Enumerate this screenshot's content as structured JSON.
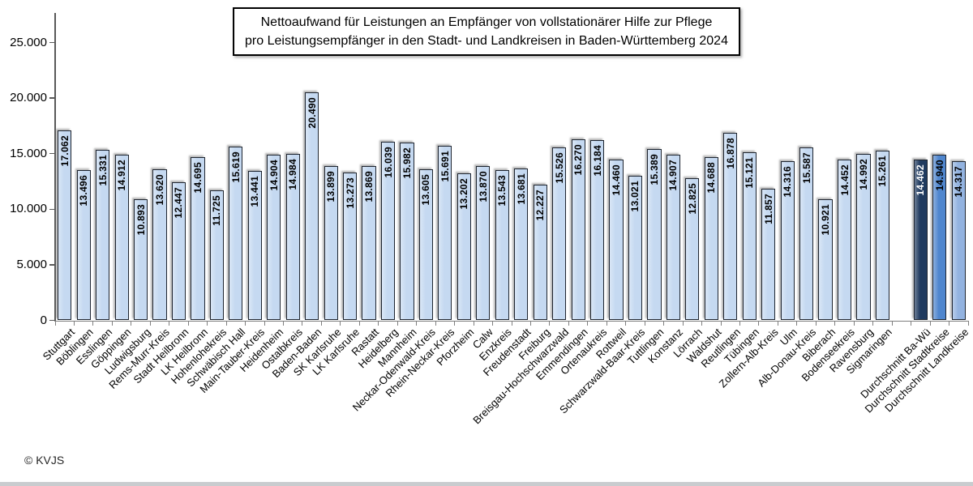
{
  "title": {
    "line1": "Nettoaufwand für Leistungen an Empfänger von vollstationärer Hilfe zur Pflege",
    "line2": "pro Leistungsempfänger in den Stadt- und Landkreisen in Baden-Württemberg 2024"
  },
  "footer": {
    "copyright": "© KVJS"
  },
  "y_axis": {
    "tick_labels": [
      "0",
      "5.000",
      "10.000",
      "15.000",
      "20.000",
      "25.000"
    ]
  },
  "chart_data": {
    "type": "bar",
    "title": "Nettoaufwand für Leistungen an Empfänger von vollstationärer Hilfe zur Pflege pro Leistungsempfänger in den Stadt- und Landkreisen in Baden-Württemberg 2024",
    "xlabel": "",
    "ylabel": "",
    "ylim": [
      0,
      25000
    ],
    "grid": false,
    "legend": false,
    "value_label_format": "german-thousands-dot",
    "categories": [
      "Stuttgart",
      "Böblingen",
      "Esslingen",
      "Göppingen",
      "Ludwigsburg",
      "Rems-Murr-Kreis",
      "Stadt Heilbronn",
      "LK Heilbronn",
      "Hohenlohekreis",
      "Schwäbisch Hall",
      "Main-Tauber-Kreis",
      "Heidenheim",
      "Ostalbkreis",
      "Baden-Baden",
      "SK Karlsruhe",
      "LK Karlsruhe",
      "Rastatt",
      "Heidelberg",
      "Mannheim",
      "Neckar-Odenwald-Kreis",
      "Rhein-Neckar-Kreis",
      "Pforzheim",
      "Calw",
      "Enzkreis",
      "Freudenstadt",
      "Freiburg",
      "Breisgau-Hochschwarzwald",
      "Emmendingen",
      "Ortenaukreis",
      "Rottweil",
      "Schwarzwald-Baar-Kreis",
      "Tuttlingen",
      "Konstanz",
      "Lörrach",
      "Waldshut",
      "Reutlingen",
      "Tübingen",
      "Zollern-Alb-Kreis",
      "Ulm",
      "Alb-Donau-Kreis",
      "Biberach",
      "Bodenseekreis",
      "Ravensburg",
      "Sigmaringen"
    ],
    "values": [
      17062,
      13496,
      15331,
      14912,
      10893,
      13620,
      12447,
      14695,
      11725,
      15619,
      13441,
      14904,
      14984,
      20490,
      13899,
      13273,
      13869,
      16039,
      15982,
      13605,
      15691,
      13202,
      13870,
      13543,
      13681,
      12227,
      15526,
      16270,
      16184,
      14460,
      13021,
      15389,
      14907,
      12825,
      14688,
      16878,
      15121,
      11857,
      14316,
      15587,
      10921,
      14452,
      14992,
      15261
    ],
    "averages": [
      {
        "label": "Durchschnitt Ba-Wü",
        "value": 14462,
        "fill": "#1f3a5f",
        "text_color": "#ffffff"
      },
      {
        "label": "Durchschnitt Stadtkreise",
        "value": 14940,
        "fill": "#4f86ce",
        "text_color": "#000000"
      },
      {
        "label": "Durchschnitt Landkreise",
        "value": 14317,
        "fill": "#93b3e0",
        "text_color": "#000000"
      }
    ],
    "colors": {
      "bar_fill": "#c5d9f1",
      "bar_border": "#1e2530",
      "value_text": "#000000",
      "axis": "#595959"
    }
  }
}
